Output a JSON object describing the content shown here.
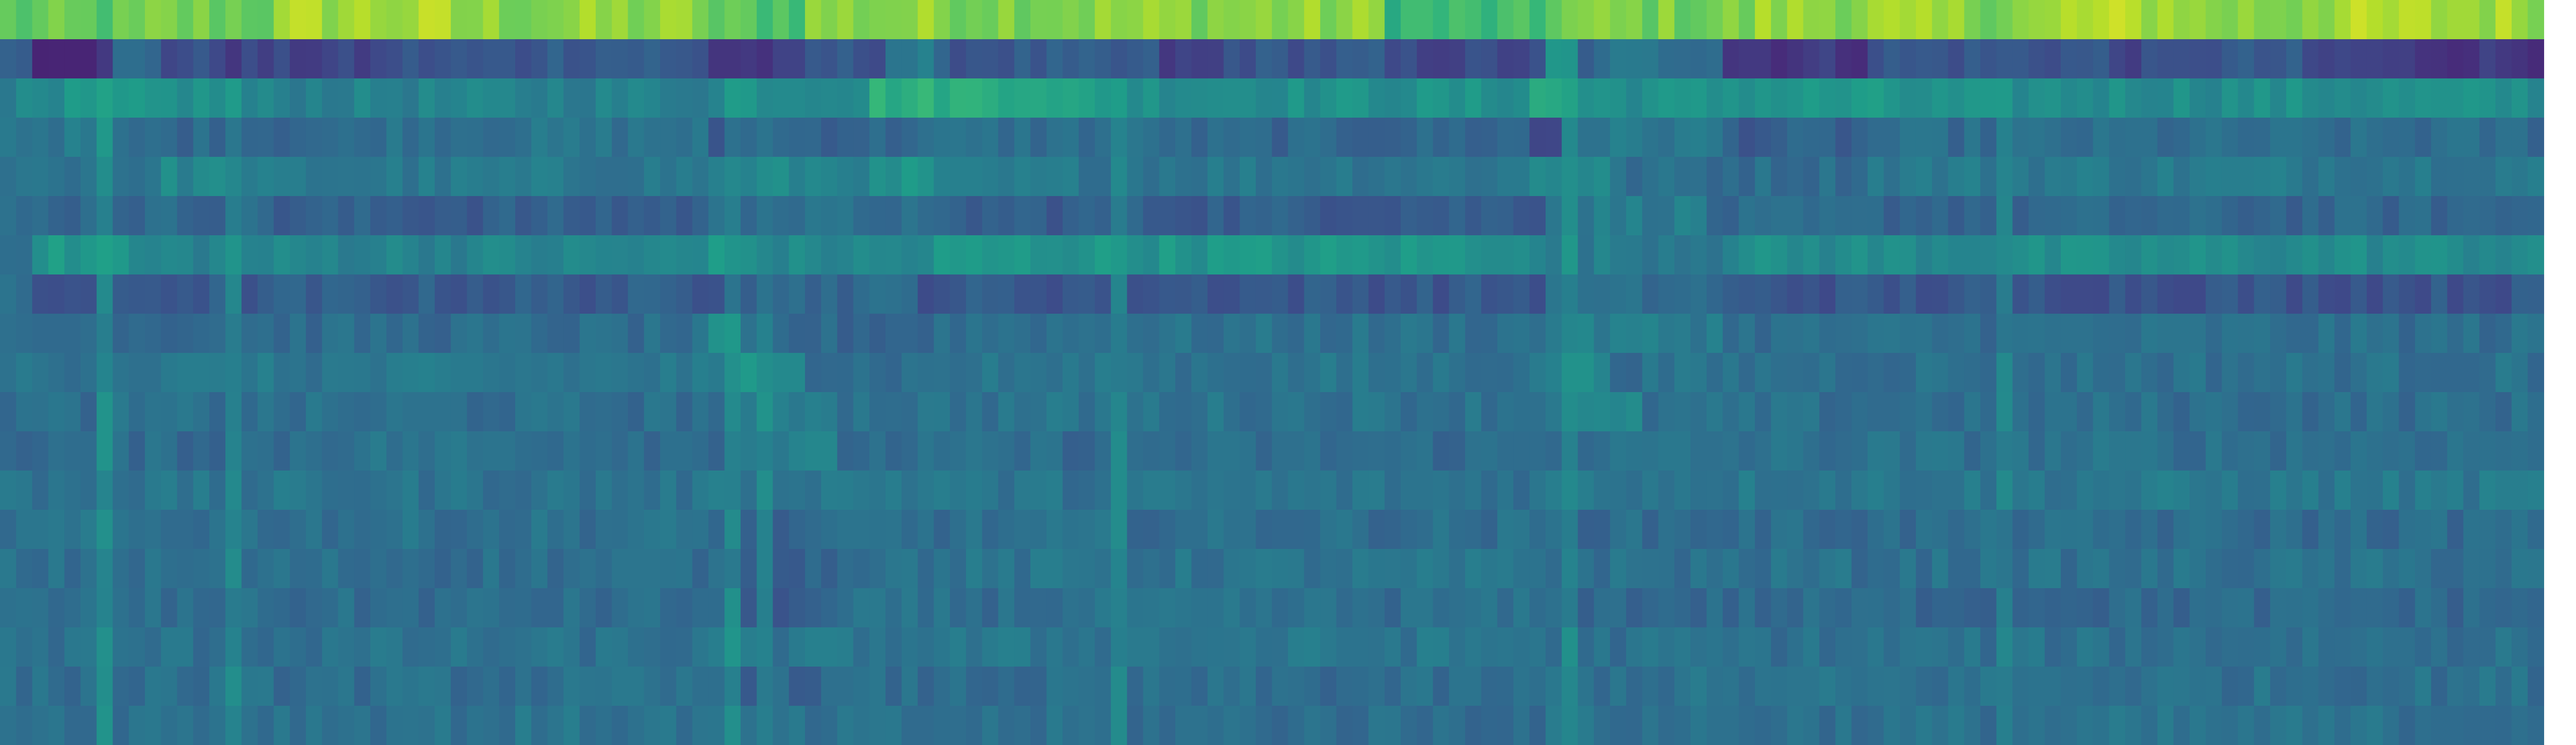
{
  "chart_data": {
    "type": "heatmap",
    "title": "",
    "xlabel": "",
    "ylabel": "",
    "grid": false,
    "legend": "none",
    "colormap": "viridis",
    "colormap_stops": [
      "#440154",
      "#482878",
      "#3e4989",
      "#31688e",
      "#26828e",
      "#1f9e89",
      "#35b779",
      "#6ece58",
      "#b5de2b",
      "#fde725"
    ],
    "value_range": [
      0,
      1
    ],
    "n_rows": 19,
    "n_cols": 160,
    "rows": [
      {
        "base": 0.82,
        "noise": 0.07,
        "segments": [
          [
            0,
            9,
            0.74
          ],
          [
            9,
            17,
            0.78
          ],
          [
            18,
            28,
            0.86
          ],
          [
            44,
            50,
            0.73
          ],
          [
            86,
            96,
            0.67
          ],
          [
            96,
            109,
            0.79
          ],
          [
            109,
            118,
            0.84
          ],
          [
            128,
            136,
            0.87
          ],
          [
            143,
            158,
            0.86
          ]
        ]
      },
      {
        "base": 0.27,
        "noise": 0.05,
        "segments": [
          [
            0,
            2,
            0.3
          ],
          [
            2,
            7,
            0.14
          ],
          [
            7,
            10,
            0.34
          ],
          [
            10,
            14,
            0.24
          ],
          [
            14,
            24,
            0.2
          ],
          [
            24,
            33,
            0.26
          ],
          [
            33,
            41,
            0.3
          ],
          [
            44,
            50,
            0.16
          ],
          [
            55,
            58,
            0.4
          ],
          [
            58,
            66,
            0.28
          ],
          [
            72,
            76,
            0.18
          ],
          [
            86,
            96,
            0.22
          ],
          [
            96,
            98,
            0.5
          ],
          [
            99,
            107,
            0.38
          ],
          [
            107,
            116,
            0.17
          ],
          [
            131,
            136,
            0.22
          ],
          [
            143,
            148,
            0.2
          ],
          [
            148,
            158,
            0.17
          ]
        ]
      },
      {
        "base": 0.5,
        "noise": 0.05,
        "segments": [
          [
            0,
            4,
            0.44
          ],
          [
            15,
            45,
            0.44
          ],
          [
            45,
            48,
            0.52
          ],
          [
            54,
            65,
            0.63
          ],
          [
            65,
            70,
            0.56
          ],
          [
            95,
            98,
            0.6
          ],
          [
            107,
            118,
            0.52
          ],
          [
            118,
            158,
            0.49
          ]
        ]
      },
      {
        "base": 0.36,
        "noise": 0.05,
        "segments": [
          [
            0,
            7,
            0.4
          ],
          [
            7,
            23,
            0.34
          ],
          [
            23,
            44,
            0.38
          ],
          [
            44,
            46,
            0.22
          ],
          [
            46,
            56,
            0.33
          ],
          [
            56,
            73,
            0.36
          ],
          [
            73,
            95,
            0.33
          ],
          [
            95,
            97,
            0.22
          ],
          [
            97,
            107,
            0.4
          ],
          [
            107,
            116,
            0.3
          ],
          [
            116,
            158,
            0.35
          ]
        ]
      },
      {
        "base": 0.42,
        "noise": 0.05,
        "segments": [
          [
            0,
            10,
            0.39
          ],
          [
            10,
            15,
            0.46
          ],
          [
            15,
            44,
            0.4
          ],
          [
            47,
            56,
            0.46
          ],
          [
            56,
            58,
            0.52
          ],
          [
            58,
            95,
            0.4
          ],
          [
            95,
            100,
            0.48
          ],
          [
            100,
            116,
            0.36
          ],
          [
            116,
            158,
            0.41
          ]
        ]
      },
      {
        "base": 0.35,
        "noise": 0.05,
        "segments": [
          [
            0,
            17,
            0.34
          ],
          [
            17,
            44,
            0.3
          ],
          [
            46,
            57,
            0.36
          ],
          [
            57,
            96,
            0.3
          ],
          [
            96,
            106,
            0.42
          ],
          [
            106,
            158,
            0.33
          ]
        ]
      },
      {
        "base": 0.46,
        "noise": 0.05,
        "segments": [
          [
            0,
            2,
            0.4
          ],
          [
            2,
            8,
            0.52
          ],
          [
            8,
            44,
            0.45
          ],
          [
            44,
            46,
            0.56
          ],
          [
            46,
            58,
            0.46
          ],
          [
            58,
            95,
            0.52
          ],
          [
            95,
            107,
            0.42
          ],
          [
            107,
            158,
            0.48
          ]
        ]
      },
      {
        "base": 0.3,
        "noise": 0.05,
        "segments": [
          [
            0,
            2,
            0.34
          ],
          [
            2,
            8,
            0.26
          ],
          [
            8,
            44,
            0.29
          ],
          [
            46,
            57,
            0.34
          ],
          [
            57,
            96,
            0.28
          ],
          [
            96,
            107,
            0.35
          ],
          [
            107,
            158,
            0.27
          ]
        ]
      },
      {
        "base": 0.36,
        "noise": 0.05,
        "segments": [
          [
            0,
            44,
            0.35
          ],
          [
            44,
            46,
            0.46
          ],
          [
            46,
            58,
            0.33
          ],
          [
            58,
            96,
            0.37
          ],
          [
            96,
            107,
            0.42
          ],
          [
            107,
            158,
            0.36
          ]
        ]
      },
      {
        "base": 0.38,
        "noise": 0.05,
        "segments": [
          [
            0,
            44,
            0.39
          ],
          [
            46,
            50,
            0.52
          ],
          [
            50,
            58,
            0.36
          ],
          [
            58,
            96,
            0.38
          ],
          [
            96,
            100,
            0.47
          ],
          [
            100,
            158,
            0.37
          ]
        ]
      },
      {
        "base": 0.37,
        "noise": 0.05,
        "segments": [
          [
            0,
            44,
            0.36
          ],
          [
            47,
            52,
            0.44
          ],
          [
            52,
            96,
            0.38
          ],
          [
            96,
            102,
            0.44
          ],
          [
            102,
            158,
            0.36
          ]
        ]
      },
      {
        "base": 0.36,
        "noise": 0.05,
        "segments": [
          [
            0,
            18,
            0.35
          ],
          [
            18,
            40,
            0.38
          ],
          [
            46,
            52,
            0.42
          ],
          [
            52,
            96,
            0.35
          ],
          [
            96,
            158,
            0.37
          ]
        ]
      },
      {
        "base": 0.39,
        "noise": 0.05,
        "segments": [
          [
            0,
            44,
            0.38
          ],
          [
            46,
            60,
            0.41
          ],
          [
            60,
            96,
            0.38
          ],
          [
            96,
            158,
            0.4
          ]
        ]
      },
      {
        "base": 0.36,
        "noise": 0.05,
        "segments": [
          [
            0,
            46,
            0.37
          ],
          [
            46,
            52,
            0.32
          ],
          [
            52,
            96,
            0.36
          ],
          [
            96,
            158,
            0.35
          ]
        ]
      },
      {
        "base": 0.37,
        "noise": 0.05,
        "segments": [
          [
            0,
            44,
            0.36
          ],
          [
            44,
            52,
            0.33
          ],
          [
            52,
            96,
            0.38
          ],
          [
            96,
            158,
            0.37
          ]
        ]
      },
      {
        "base": 0.35,
        "noise": 0.05,
        "segments": [
          [
            0,
            46,
            0.35
          ],
          [
            46,
            52,
            0.3
          ],
          [
            52,
            96,
            0.36
          ],
          [
            96,
            158,
            0.34
          ]
        ]
      },
      {
        "base": 0.38,
        "noise": 0.05,
        "segments": [
          [
            0,
            44,
            0.37
          ],
          [
            44,
            96,
            0.39
          ],
          [
            96,
            158,
            0.37
          ]
        ]
      },
      {
        "base": 0.36,
        "noise": 0.05,
        "segments": [
          [
            0,
            46,
            0.36
          ],
          [
            46,
            52,
            0.33
          ],
          [
            52,
            96,
            0.35
          ],
          [
            96,
            158,
            0.37
          ]
        ]
      },
      {
        "base": 0.37,
        "noise": 0.05,
        "segments": [
          [
            0,
            44,
            0.38
          ],
          [
            44,
            96,
            0.36
          ],
          [
            96,
            158,
            0.37
          ]
        ]
      }
    ],
    "column_stripes": [
      {
        "col": 6,
        "value": 0.6
      },
      {
        "col": 14,
        "value": 0.55
      },
      {
        "col": 45,
        "value": 0.56
      },
      {
        "col": 47,
        "value": 0.5
      },
      {
        "col": 69,
        "value": 0.55
      },
      {
        "col": 97,
        "value": 0.56
      },
      {
        "col": 124,
        "value": 0.5
      }
    ],
    "unfilled_columns": [
      158,
      159
    ]
  }
}
